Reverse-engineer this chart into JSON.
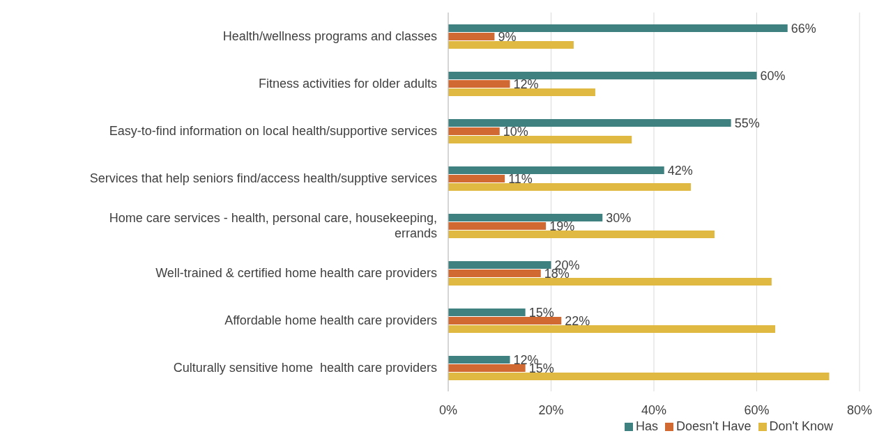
{
  "chart_data": {
    "type": "bar",
    "orientation": "horizontal",
    "categories": [
      "Health/wellness programs and classes",
      "Fitness activities for older adults",
      "Easy-to-find information on local health/supportive services",
      "Services that help seniors find/access health/supptive services",
      "Home care services - health, personal care, housekeeping, errands",
      "Well-trained & certified home health care providers",
      "Affordable home health care providers",
      "Culturally sensitive home  health care providers"
    ],
    "series": [
      {
        "name": "Has",
        "color": "#3f8080",
        "values": [
          66,
          60,
          55,
          42,
          30,
          20,
          15,
          12
        ],
        "value_labels": [
          "66%",
          "60%",
          "55%",
          "42%",
          "30%",
          "20%",
          "15%",
          "12%"
        ]
      },
      {
        "name": "Doesn't Have",
        "color": "#d06a32",
        "values": [
          9,
          12,
          10,
          11,
          19,
          18,
          22,
          15
        ],
        "value_labels": [
          "9%",
          "12%",
          "10%",
          "11%",
          "19%",
          "18%",
          "22%",
          "15%"
        ]
      },
      {
        "name": "Don't Know",
        "color": "#e0b943",
        "values": [
          24.4,
          28.6,
          35.7,
          47.2,
          51.8,
          62.9,
          63.6,
          74.1
        ]
      }
    ],
    "xlim": [
      0,
      80
    ],
    "xticks": [
      {
        "value": 0,
        "label": "0%"
      },
      {
        "value": 20,
        "label": "20%"
      },
      {
        "value": 40,
        "label": "40%"
      },
      {
        "value": 60,
        "label": "60%"
      },
      {
        "value": 80,
        "label": "80%"
      }
    ],
    "grid": "x",
    "legend": "bottom"
  }
}
